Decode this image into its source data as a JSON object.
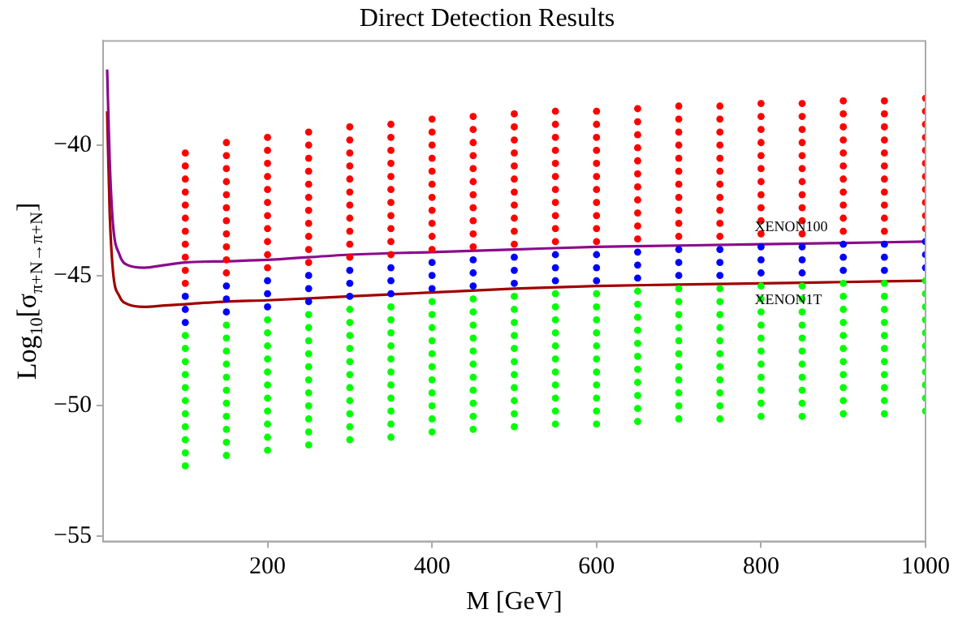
{
  "chart_data": {
    "type": "scatter",
    "title": "Direct Detection Results",
    "xlabel": "M [GeV]",
    "ylabel": "Log$_{10}$[σ$_{π+N→π+N}$]",
    "xlim": [
      0,
      1000
    ],
    "xticks": [
      200,
      400,
      600,
      800,
      1000
    ],
    "ylim": [
      -55.2,
      -36
    ],
    "yticks": [
      -40,
      -45,
      -50,
      -55
    ],
    "grid": false,
    "legend": false,
    "marker": "circle",
    "series": [
      {
        "type": "scatter",
        "color": "#ff0000",
        "x": [
          100,
          100,
          100,
          100,
          100,
          100,
          100,
          100,
          100,
          100,
          100,
          150,
          150,
          150,
          150,
          150,
          150,
          150,
          150,
          150,
          150,
          150,
          200,
          200,
          200,
          200,
          200,
          200,
          200,
          200,
          200,
          200,
          200,
          250,
          250,
          250,
          250,
          250,
          250,
          250,
          250,
          250,
          250,
          250,
          300,
          300,
          300,
          300,
          300,
          300,
          300,
          300,
          300,
          300,
          300,
          350,
          350,
          350,
          350,
          350,
          350,
          350,
          350,
          350,
          350,
          350,
          400,
          400,
          400,
          400,
          400,
          400,
          400,
          400,
          400,
          400,
          400,
          450,
          450,
          450,
          450,
          450,
          450,
          450,
          450,
          450,
          450,
          450,
          500,
          500,
          500,
          500,
          500,
          500,
          500,
          500,
          500,
          500,
          500,
          550,
          550,
          550,
          550,
          550,
          550,
          550,
          550,
          550,
          550,
          550,
          600,
          600,
          600,
          600,
          600,
          600,
          600,
          600,
          600,
          600,
          600,
          650,
          650,
          650,
          650,
          650,
          650,
          650,
          650,
          650,
          650,
          650,
          700,
          700,
          700,
          700,
          700,
          700,
          700,
          700,
          700,
          700,
          700,
          750,
          750,
          750,
          750,
          750,
          750,
          750,
          750,
          750,
          750,
          750,
          800,
          800,
          800,
          800,
          800,
          800,
          800,
          800,
          800,
          800,
          800,
          850,
          850,
          850,
          850,
          850,
          850,
          850,
          850,
          850,
          850,
          850,
          900,
          900,
          900,
          900,
          900,
          900,
          900,
          900,
          900,
          900,
          900,
          950,
          950,
          950,
          950,
          950,
          950,
          950,
          950,
          950,
          950,
          950,
          1000,
          1000,
          1000,
          1000,
          1000,
          1000,
          1000,
          1000,
          1000,
          1000,
          1000
        ],
        "values": [
          -40.3,
          -40.8,
          -41.3,
          -41.8,
          -42.3,
          -42.8,
          -43.3,
          -43.8,
          -44.3,
          -44.8,
          -45.3,
          -39.9,
          -40.4,
          -40.9,
          -41.4,
          -41.9,
          -42.4,
          -42.9,
          -43.4,
          -43.9,
          -44.4,
          -44.9,
          -39.7,
          -40.2,
          -40.7,
          -41.2,
          -41.7,
          -42.2,
          -42.7,
          -43.2,
          -43.7,
          -44.2,
          -44.7,
          -39.5,
          -40,
          -40.5,
          -41,
          -41.5,
          -42,
          -42.5,
          -43,
          -43.5,
          -44,
          -44.5,
          -39.3,
          -39.8,
          -40.3,
          -40.8,
          -41.3,
          -41.8,
          -42.3,
          -42.8,
          -43.3,
          -43.8,
          -44.3,
          -39.2,
          -39.7,
          -40.2,
          -40.7,
          -41.2,
          -41.7,
          -42.2,
          -42.7,
          -43.2,
          -43.7,
          -44.2,
          -39,
          -39.5,
          -40,
          -40.5,
          -41,
          -41.5,
          -42,
          -42.5,
          -43,
          -43.5,
          -44,
          -38.9,
          -39.4,
          -39.9,
          -40.4,
          -40.9,
          -41.4,
          -41.9,
          -42.4,
          -42.9,
          -43.4,
          -43.9,
          -38.8,
          -39.3,
          -39.8,
          -40.3,
          -40.8,
          -41.3,
          -41.8,
          -42.3,
          -42.8,
          -43.3,
          -43.8,
          -38.7,
          -39.2,
          -39.7,
          -40.2,
          -40.7,
          -41.2,
          -41.7,
          -42.2,
          -42.7,
          -43.2,
          -43.7,
          -38.7,
          -39.2,
          -39.7,
          -40.2,
          -40.7,
          -41.2,
          -41.7,
          -42.2,
          -42.7,
          -43.2,
          -43.7,
          -38.6,
          -39.1,
          -39.6,
          -40.1,
          -40.6,
          -41.1,
          -41.6,
          -42.1,
          -42.6,
          -43.1,
          -43.6,
          -38.5,
          -39,
          -39.5,
          -40,
          -40.5,
          -41,
          -41.5,
          -42,
          -42.5,
          -43,
          -43.5,
          -38.5,
          -39,
          -39.5,
          -40,
          -40.5,
          -41,
          -41.5,
          -42,
          -42.5,
          -43,
          -43.5,
          -38.4,
          -38.9,
          -39.4,
          -39.9,
          -40.4,
          -40.9,
          -41.4,
          -41.9,
          -42.4,
          -42.9,
          -43.4,
          -38.4,
          -38.9,
          -39.4,
          -39.9,
          -40.4,
          -40.9,
          -41.4,
          -41.9,
          -42.4,
          -42.9,
          -43.4,
          -38.3,
          -38.8,
          -39.3,
          -39.8,
          -40.3,
          -40.8,
          -41.3,
          -41.8,
          -42.3,
          -42.8,
          -43.3,
          -38.3,
          -38.8,
          -39.3,
          -39.8,
          -40.3,
          -40.8,
          -41.3,
          -41.8,
          -42.3,
          -42.8,
          -43.3,
          -38.2,
          -38.7,
          -39.2,
          -39.7,
          -40.2,
          -40.7,
          -41.2,
          -41.7,
          -42.2,
          -42.7,
          -43.2
        ]
      },
      {
        "type": "scatter",
        "color": "#0000ff",
        "x": [
          100,
          100,
          100,
          150,
          150,
          150,
          200,
          200,
          200,
          250,
          250,
          250,
          300,
          300,
          300,
          350,
          350,
          350,
          400,
          400,
          400,
          450,
          450,
          450,
          500,
          500,
          500,
          550,
          550,
          550,
          600,
          600,
          600,
          650,
          650,
          650,
          700,
          700,
          700,
          750,
          750,
          750,
          800,
          800,
          800,
          850,
          850,
          850,
          900,
          900,
          900,
          950,
          950,
          950,
          1000,
          1000,
          1000
        ],
        "values": [
          -45.8,
          -46.3,
          -46.8,
          -45.4,
          -45.9,
          -46.4,
          -45.2,
          -45.7,
          -46.2,
          -45,
          -45.5,
          -46,
          -44.8,
          -45.3,
          -45.8,
          -44.7,
          -45.2,
          -45.7,
          -44.5,
          -45,
          -45.5,
          -44.4,
          -44.9,
          -45.4,
          -44.3,
          -44.8,
          -45.3,
          -44.2,
          -44.7,
          -45.2,
          -44.2,
          -44.7,
          -45.2,
          -44.1,
          -44.6,
          -45.1,
          -44,
          -44.5,
          -45,
          -44,
          -44.5,
          -45,
          -43.9,
          -44.4,
          -44.9,
          -43.9,
          -44.4,
          -44.9,
          -43.8,
          -44.3,
          -44.8,
          -43.8,
          -44.3,
          -44.8,
          -43.7,
          -44.2,
          -44.7
        ]
      },
      {
        "type": "scatter",
        "color": "#00ff00",
        "x": [
          100,
          100,
          100,
          100,
          100,
          100,
          100,
          100,
          100,
          100,
          100,
          150,
          150,
          150,
          150,
          150,
          150,
          150,
          150,
          150,
          150,
          150,
          200,
          200,
          200,
          200,
          200,
          200,
          200,
          200,
          200,
          200,
          200,
          250,
          250,
          250,
          250,
          250,
          250,
          250,
          250,
          250,
          250,
          250,
          300,
          300,
          300,
          300,
          300,
          300,
          300,
          300,
          300,
          300,
          300,
          350,
          350,
          350,
          350,
          350,
          350,
          350,
          350,
          350,
          350,
          350,
          400,
          400,
          400,
          400,
          400,
          400,
          400,
          400,
          400,
          400,
          400,
          450,
          450,
          450,
          450,
          450,
          450,
          450,
          450,
          450,
          450,
          450,
          500,
          500,
          500,
          500,
          500,
          500,
          500,
          500,
          500,
          500,
          500,
          550,
          550,
          550,
          550,
          550,
          550,
          550,
          550,
          550,
          550,
          550,
          600,
          600,
          600,
          600,
          600,
          600,
          600,
          600,
          600,
          600,
          600,
          650,
          650,
          650,
          650,
          650,
          650,
          650,
          650,
          650,
          650,
          650,
          700,
          700,
          700,
          700,
          700,
          700,
          700,
          700,
          700,
          700,
          700,
          750,
          750,
          750,
          750,
          750,
          750,
          750,
          750,
          750,
          750,
          750,
          800,
          800,
          800,
          800,
          800,
          800,
          800,
          800,
          800,
          800,
          800,
          850,
          850,
          850,
          850,
          850,
          850,
          850,
          850,
          850,
          850,
          850,
          900,
          900,
          900,
          900,
          900,
          900,
          900,
          900,
          900,
          900,
          900,
          950,
          950,
          950,
          950,
          950,
          950,
          950,
          950,
          950,
          950,
          950,
          1000,
          1000,
          1000,
          1000,
          1000,
          1000,
          1000,
          1000,
          1000,
          1000,
          1000
        ],
        "values": [
          -47.3,
          -47.8,
          -48.3,
          -48.8,
          -49.3,
          -49.8,
          -50.3,
          -50.8,
          -51.3,
          -51.8,
          -52.3,
          -46.9,
          -47.4,
          -47.9,
          -48.4,
          -48.9,
          -49.4,
          -49.9,
          -50.4,
          -50.9,
          -51.4,
          -51.9,
          -46.7,
          -47.2,
          -47.7,
          -48.2,
          -48.7,
          -49.2,
          -49.7,
          -50.2,
          -50.7,
          -51.2,
          -51.7,
          -46.5,
          -47,
          -47.5,
          -48,
          -48.5,
          -49,
          -49.5,
          -50,
          -50.5,
          -51,
          -51.5,
          -46.3,
          -46.8,
          -47.3,
          -47.8,
          -48.3,
          -48.8,
          -49.3,
          -49.8,
          -50.3,
          -50.8,
          -51.3,
          -46.2,
          -46.7,
          -47.2,
          -47.7,
          -48.2,
          -48.7,
          -49.2,
          -49.7,
          -50.2,
          -50.7,
          -51.2,
          -46,
          -46.5,
          -47,
          -47.5,
          -48,
          -48.5,
          -49,
          -49.5,
          -50,
          -50.5,
          -51,
          -45.9,
          -46.4,
          -46.9,
          -47.4,
          -47.9,
          -48.4,
          -48.9,
          -49.4,
          -49.9,
          -50.4,
          -50.9,
          -45.8,
          -46.3,
          -46.8,
          -47.3,
          -47.8,
          -48.3,
          -48.8,
          -49.3,
          -49.8,
          -50.3,
          -50.8,
          -45.7,
          -46.2,
          -46.7,
          -47.2,
          -47.7,
          -48.2,
          -48.7,
          -49.2,
          -49.7,
          -50.2,
          -50.7,
          -45.7,
          -46.2,
          -46.7,
          -47.2,
          -47.7,
          -48.2,
          -48.7,
          -49.2,
          -49.7,
          -50.2,
          -50.7,
          -45.6,
          -46.1,
          -46.6,
          -47.1,
          -47.6,
          -48.1,
          -48.6,
          -49.1,
          -49.6,
          -50.1,
          -50.6,
          -45.5,
          -46,
          -46.5,
          -47,
          -47.5,
          -48,
          -48.5,
          -49,
          -49.5,
          -50,
          -50.5,
          -45.5,
          -46,
          -46.5,
          -47,
          -47.5,
          -48,
          -48.5,
          -49,
          -49.5,
          -50,
          -50.5,
          -45.4,
          -45.9,
          -46.4,
          -46.9,
          -47.4,
          -47.9,
          -48.4,
          -48.9,
          -49.4,
          -49.9,
          -50.4,
          -45.4,
          -45.9,
          -46.4,
          -46.9,
          -47.4,
          -47.9,
          -48.4,
          -48.9,
          -49.4,
          -49.9,
          -50.4,
          -45.3,
          -45.8,
          -46.3,
          -46.8,
          -47.3,
          -47.8,
          -48.3,
          -48.8,
          -49.3,
          -49.8,
          -50.3,
          -45.3,
          -45.8,
          -46.3,
          -46.8,
          -47.3,
          -47.8,
          -48.3,
          -48.8,
          -49.3,
          -49.8,
          -50.3,
          -45.2,
          -45.7,
          -46.2,
          -46.7,
          -47.2,
          -47.7,
          -48.2,
          -48.7,
          -49.2,
          -49.7,
          -50.2
        ]
      },
      {
        "type": "line",
        "name": "XENON100",
        "color": "#8b0a8b",
        "marker": "none",
        "line_style": "solid",
        "x": [
          5,
          8,
          12,
          20,
          30,
          50,
          75,
          100,
          150,
          200,
          300,
          400,
          500,
          600,
          700,
          800,
          900,
          1000
        ],
        "values": [
          -37.1,
          -40.5,
          -43,
          -44.2,
          -44.6,
          -44.7,
          -44.6,
          -44.5,
          -44.45,
          -44.4,
          -44.2,
          -44.1,
          -44,
          -43.9,
          -43.85,
          -43.8,
          -43.75,
          -43.7
        ]
      },
      {
        "type": "line",
        "name": "XENON1T",
        "color": "#a00000",
        "marker": "none",
        "line_style": "solid",
        "x": [
          5,
          8,
          12,
          20,
          30,
          50,
          75,
          100,
          150,
          200,
          300,
          400,
          500,
          600,
          700,
          800,
          900,
          1000
        ],
        "values": [
          -38.7,
          -42.5,
          -44.8,
          -45.8,
          -46.1,
          -46.2,
          -46.15,
          -46.1,
          -46,
          -45.95,
          -45.8,
          -45.65,
          -45.5,
          -45.4,
          -45.35,
          -45.3,
          -45.25,
          -45.2
        ]
      }
    ]
  }
}
